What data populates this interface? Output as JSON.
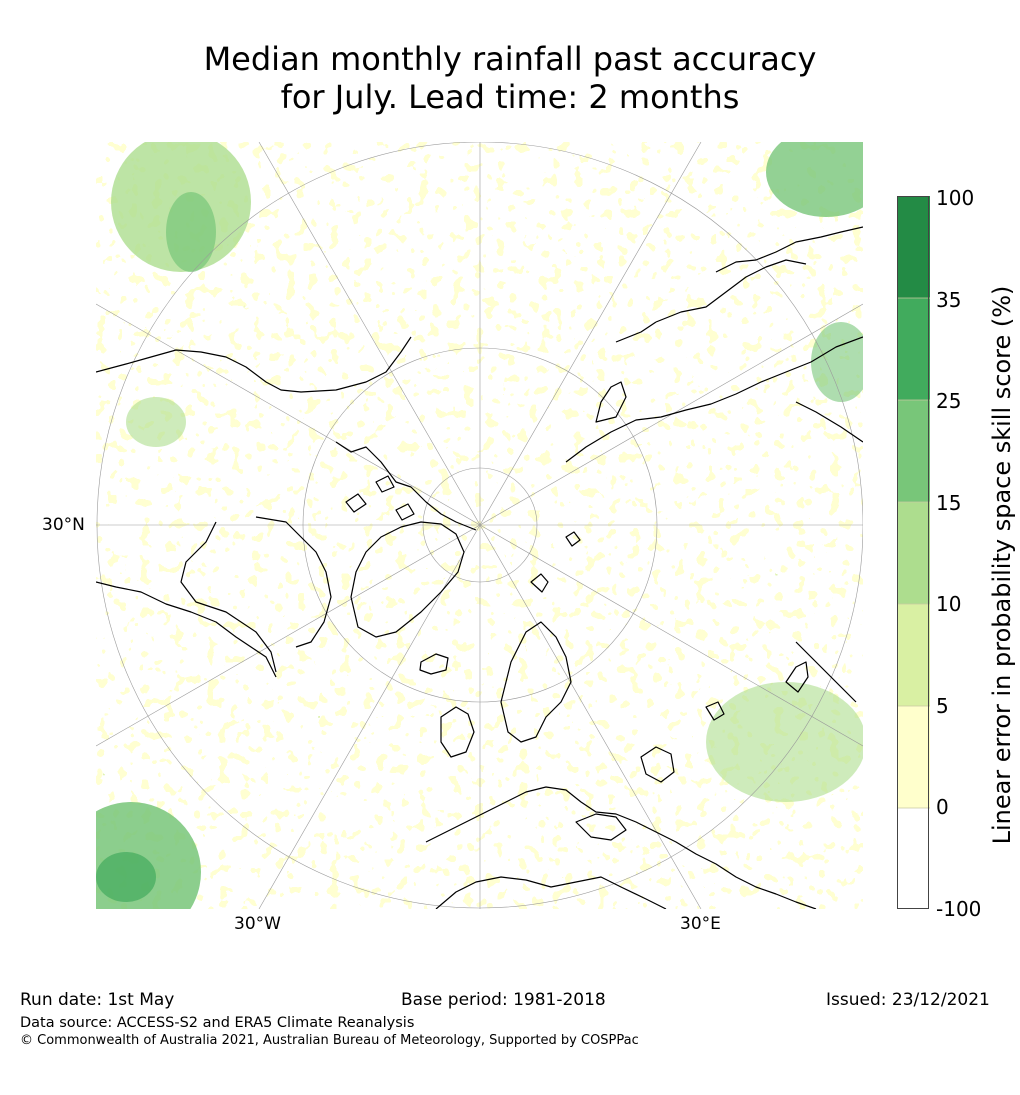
{
  "title": {
    "line1": "Median monthly rainfall past accuracy",
    "line2": "for July. Lead time: 2 months"
  },
  "map": {
    "lon_labels": [
      "30°W",
      "30°E"
    ],
    "lat_labels": [
      "30°N"
    ]
  },
  "colorbar": {
    "label": "Linear error in probability space skill score (%)",
    "ticks": [
      "100",
      "35",
      "25",
      "15",
      "10",
      "5",
      "0",
      "-100"
    ],
    "colors": [
      "#238b45",
      "#41ab5d",
      "#78c679",
      "#addd8e",
      "#d9f0a3",
      "#ffffcc",
      "#ffffff"
    ]
  },
  "footer": {
    "run_date": "Run date: 1st May",
    "base_period": "Base period: 1981-2018",
    "issued": "Issued: 23/12/2021",
    "data_source": "Data source: ACCESS-S2 and ERA5 Climate Reanalysis",
    "copyright": "© Commonwealth of Australia 2021, Australian Bureau of Meteorology, Supported by COSPPac"
  }
}
